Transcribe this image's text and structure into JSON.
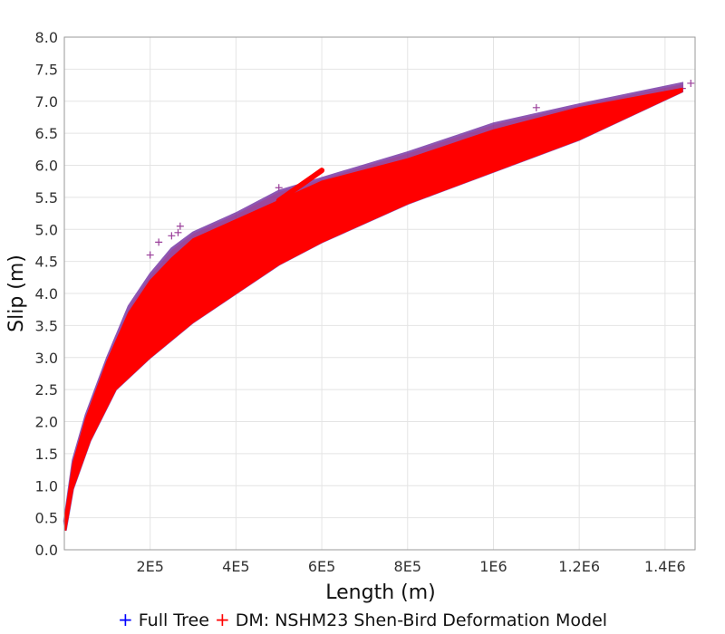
{
  "chart_data": {
    "type": "scatter",
    "title": "",
    "xlabel": "Length (m)",
    "ylabel": "Slip (m)",
    "xlim": [
      0,
      1470000
    ],
    "ylim": [
      0,
      8.0
    ],
    "grid": true,
    "legend_placement": "bottom",
    "x_ticks": [
      {
        "value": 200000,
        "label": "2E5"
      },
      {
        "value": 400000,
        "label": "4E5"
      },
      {
        "value": 600000,
        "label": "6E5"
      },
      {
        "value": 800000,
        "label": "8E5"
      },
      {
        "value": 1000000,
        "label": "1E6"
      },
      {
        "value": 1200000,
        "label": "1.2E6"
      },
      {
        "value": 1400000,
        "label": "1.4E6"
      }
    ],
    "y_ticks": [
      {
        "value": 0.0,
        "label": "0.0"
      },
      {
        "value": 0.5,
        "label": "0.5"
      },
      {
        "value": 1.0,
        "label": "1.0"
      },
      {
        "value": 1.5,
        "label": "1.5"
      },
      {
        "value": 2.0,
        "label": "2.0"
      },
      {
        "value": 2.5,
        "label": "2.5"
      },
      {
        "value": 3.0,
        "label": "3.0"
      },
      {
        "value": 3.5,
        "label": "3.5"
      },
      {
        "value": 4.0,
        "label": "4.0"
      },
      {
        "value": 4.5,
        "label": "4.5"
      },
      {
        "value": 5.0,
        "label": "5.0"
      },
      {
        "value": 5.5,
        "label": "5.5"
      },
      {
        "value": 6.0,
        "label": "6.0"
      },
      {
        "value": 6.5,
        "label": "6.5"
      },
      {
        "value": 7.0,
        "label": "7.0"
      },
      {
        "value": 7.5,
        "label": "7.5"
      },
      {
        "value": 8.0,
        "label": "8.0"
      }
    ],
    "series": [
      {
        "name": "Full Tree",
        "color": "#0000ff",
        "marker": "plus",
        "upper_envelope": [
          [
            0,
            0.45
          ],
          [
            20000,
            1.4
          ],
          [
            50000,
            2.1
          ],
          [
            100000,
            3.0
          ],
          [
            150000,
            3.8
          ],
          [
            200000,
            4.3
          ],
          [
            250000,
            4.7
          ],
          [
            300000,
            4.95
          ],
          [
            400000,
            5.25
          ],
          [
            500000,
            5.6
          ],
          [
            600000,
            5.8
          ],
          [
            800000,
            6.2
          ],
          [
            1000000,
            6.65
          ],
          [
            1200000,
            6.95
          ],
          [
            1440000,
            7.28
          ]
        ],
        "lower_envelope": [
          [
            3000,
            0.3
          ],
          [
            20000,
            0.95
          ],
          [
            60000,
            1.7
          ],
          [
            120000,
            2.5
          ],
          [
            200000,
            3.0
          ],
          [
            300000,
            3.55
          ],
          [
            400000,
            4.0
          ],
          [
            500000,
            4.45
          ],
          [
            600000,
            4.8
          ],
          [
            800000,
            5.4
          ],
          [
            1000000,
            5.9
          ],
          [
            1200000,
            6.4
          ],
          [
            1440000,
            7.15
          ]
        ],
        "outliers": [
          [
            200000,
            4.6
          ],
          [
            220000,
            4.8
          ],
          [
            250000,
            4.9
          ],
          [
            270000,
            5.05
          ],
          [
            265000,
            4.95
          ],
          [
            500000,
            5.65
          ],
          [
            1460000,
            7.28
          ],
          [
            1440000,
            7.2
          ],
          [
            1100000,
            6.9
          ]
        ]
      },
      {
        "name": "DM: NSHM23 Shen-Bird Deformation Model",
        "color": "#ff0000",
        "marker": "plus",
        "upper_envelope": [
          [
            0,
            0.45
          ],
          [
            20000,
            1.35
          ],
          [
            50000,
            2.05
          ],
          [
            100000,
            2.95
          ],
          [
            150000,
            3.7
          ],
          [
            200000,
            4.2
          ],
          [
            250000,
            4.55
          ],
          [
            300000,
            4.85
          ],
          [
            400000,
            5.15
          ],
          [
            500000,
            5.45
          ],
          [
            600000,
            5.75
          ],
          [
            800000,
            6.1
          ],
          [
            1000000,
            6.55
          ],
          [
            1200000,
            6.9
          ],
          [
            1440000,
            7.2
          ]
        ],
        "lower_envelope": [
          [
            3000,
            0.3
          ],
          [
            20000,
            0.95
          ],
          [
            60000,
            1.7
          ],
          [
            120000,
            2.5
          ],
          [
            200000,
            3.0
          ],
          [
            300000,
            3.55
          ],
          [
            400000,
            4.0
          ],
          [
            500000,
            4.45
          ],
          [
            600000,
            4.8
          ],
          [
            800000,
            5.4
          ],
          [
            1000000,
            5.9
          ],
          [
            1200000,
            6.4
          ],
          [
            1440000,
            7.15
          ]
        ],
        "spur": [
          [
            500000,
            5.45
          ],
          [
            600000,
            5.92
          ]
        ]
      }
    ]
  },
  "legend": {
    "full_tree": {
      "marker": "+",
      "label": "Full Tree"
    },
    "dm": {
      "marker": "+",
      "label": "DM: NSHM23 Shen-Bird Deformation Model"
    }
  }
}
